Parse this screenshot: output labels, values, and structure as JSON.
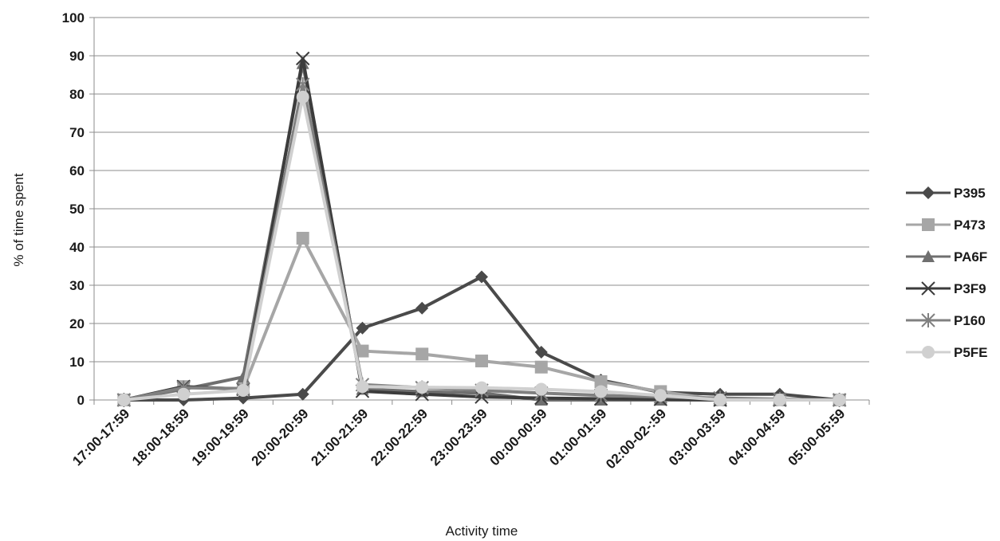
{
  "chart_data": {
    "type": "line",
    "title": "",
    "xlabel": "Activity time",
    "ylabel": "% of time spent",
    "ylim": [
      0,
      100
    ],
    "yticks": [
      0,
      10,
      20,
      30,
      40,
      50,
      60,
      70,
      80,
      90,
      100
    ],
    "grid": "horizontal",
    "legend_position": "right",
    "categories": [
      "17:00-17:59",
      "18:00-18:59",
      "19:00-19:59",
      "20:00-20:59",
      "21:00-21:59",
      "22:00-22:59",
      "23:00-23:59",
      "00:00-00:59",
      "01:00-01:59",
      "02:00-02-:59",
      "03:00-03:59",
      "04:00-04:59",
      "05:00-05:59"
    ],
    "series": [
      {
        "name": "P395",
        "marker": "diamond",
        "color": "#4a4a4a",
        "values": [
          0,
          0,
          0.5,
          1.5,
          18.8,
          24,
          32.2,
          12.5,
          5.2,
          2,
          1.5,
          1.5,
          0
        ]
      },
      {
        "name": "P473",
        "marker": "square",
        "color": "#a6a6a6",
        "values": [
          0,
          3.5,
          2.8,
          42.3,
          12.8,
          12,
          10.2,
          8.6,
          4.8,
          2.2,
          0,
          0,
          0
        ]
      },
      {
        "name": "PA6F",
        "marker": "triangle",
        "color": "#6f6f6f",
        "values": [
          0,
          2.8,
          6,
          88,
          2.8,
          2.2,
          1.8,
          0,
          0,
          0,
          0,
          0,
          0
        ]
      },
      {
        "name": "P3F9",
        "marker": "x",
        "color": "#3c3c3c",
        "values": [
          0,
          3.5,
          2.8,
          89.3,
          2.3,
          1.5,
          0.8,
          0.5,
          0.3,
          0.2,
          0,
          0,
          0
        ]
      },
      {
        "name": "P160",
        "marker": "star",
        "color": "#808080",
        "values": [
          0,
          3.2,
          3,
          82.5,
          4,
          3.2,
          2.5,
          1.8,
          1.2,
          0.8,
          0.5,
          0.2,
          0
        ]
      },
      {
        "name": "P5FE",
        "marker": "circle",
        "color": "#d0d0d0",
        "values": [
          0,
          1.5,
          2.5,
          79.2,
          3.5,
          3.3,
          3.2,
          2.8,
          2.2,
          1.2,
          0,
          0,
          0
        ]
      }
    ]
  }
}
